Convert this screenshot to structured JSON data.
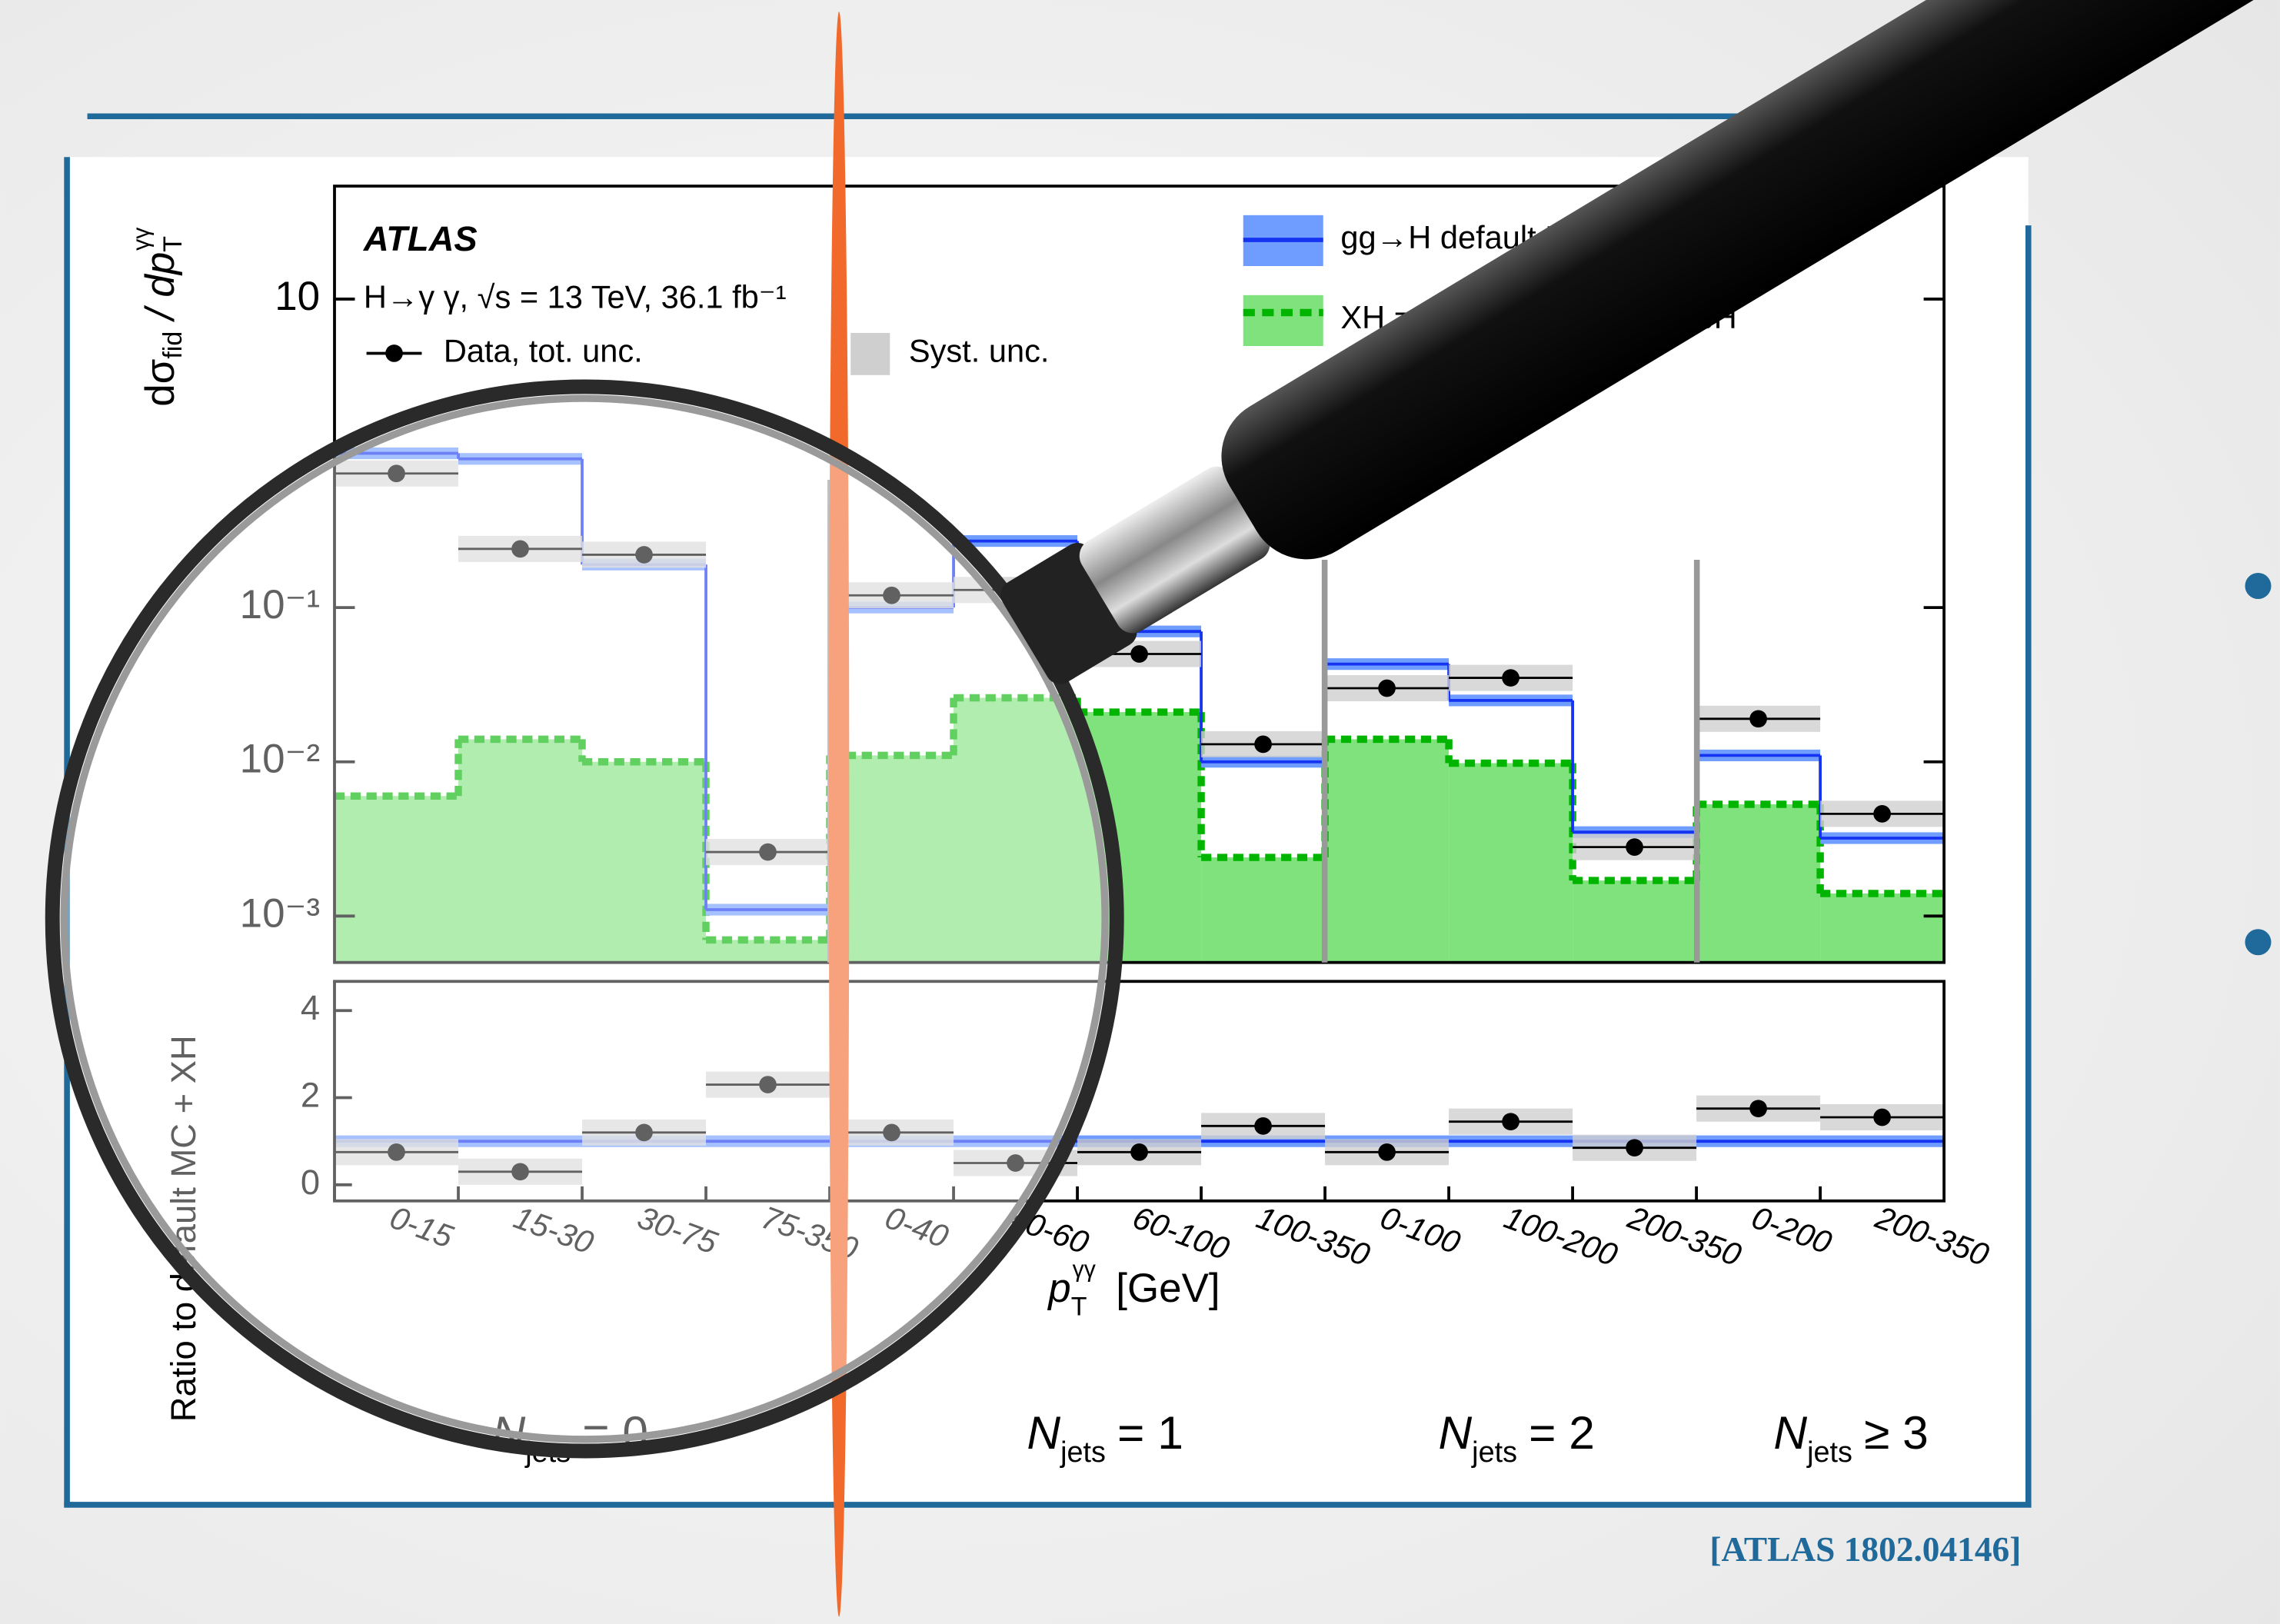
{
  "chart_data": {
    "type": "step",
    "experiment": "ATLAS",
    "subtitle": "H→γ γ, √s = 13 TeV, 36.1 fb⁻¹",
    "ylabel": [
      "dσ",
      "fid",
      " / dp",
      "T",
      "γγ"
    ],
    "ratio_ylabel": "Ratio to default MC + XH",
    "xlabel": [
      "p",
      "T",
      "γγ",
      "[GeV]"
    ],
    "groups": [
      [
        "N",
        "jets",
        "= 0"
      ],
      [
        "N",
        "jets",
        "= 1"
      ],
      [
        "N",
        "jets",
        "= 2"
      ],
      [
        "N",
        "jets",
        "≥ 3"
      ]
    ],
    "categories": [
      "0-15",
      "15-30",
      "30-75",
      "75-350",
      "0-40",
      "40-60",
      "60-100",
      "100-350",
      "0-100",
      "100-200",
      "200-350",
      "0-200",
      "200-350"
    ],
    "log_y": true,
    "ylim": [
      0.0005,
      54
    ],
    "yticks": [
      {
        "value": 0.001,
        "label": "10⁻³"
      },
      {
        "value": 0.01,
        "label": "10⁻²"
      },
      {
        "value": 0.1,
        "label": "10⁻¹"
      },
      10
    ],
    "series": [
      {
        "name": "XH = VBF + VH + ttH + bbH",
        "color": "#00b400",
        "fill": "#80e27c",
        "values": [
          0.006,
          0.014,
          0.01,
          0.0007,
          0.011,
          0.026,
          0.021,
          0.0024,
          0.014,
          0.0098,
          0.0017,
          0.0053,
          0.0014
        ]
      },
      {
        "name": "gg→H default MC",
        "color": "#1533f0",
        "fill": "#6e9cff",
        "values": [
          1.0,
          0.92,
          0.19,
          0.0011,
          0.1,
          0.27,
          0.07,
          0.01,
          0.043,
          0.025,
          0.0035,
          0.011,
          0.0032
        ]
      },
      {
        "name": "Data, tot. unc.",
        "color": "#000000",
        "values": [
          0.74,
          0.24,
          0.22,
          0.0026,
          0.12,
          0.13,
          0.05,
          0.013,
          0.03,
          0.035,
          0.0028,
          0.019,
          0.0046
        ]
      }
    ],
    "syst_label": "Syst. unc.",
    "ratio": {
      "values": [
        0.75,
        0.3,
        1.2,
        2.3,
        1.2,
        0.5,
        0.75,
        1.35,
        0.75,
        1.45,
        0.85,
        1.75,
        1.55
      ],
      "reference": 1,
      "ylim": [
        -0.37,
        4.67
      ],
      "yticks": [
        0,
        2,
        4
      ]
    },
    "citation": "[ATLAS 1802.04146]"
  }
}
